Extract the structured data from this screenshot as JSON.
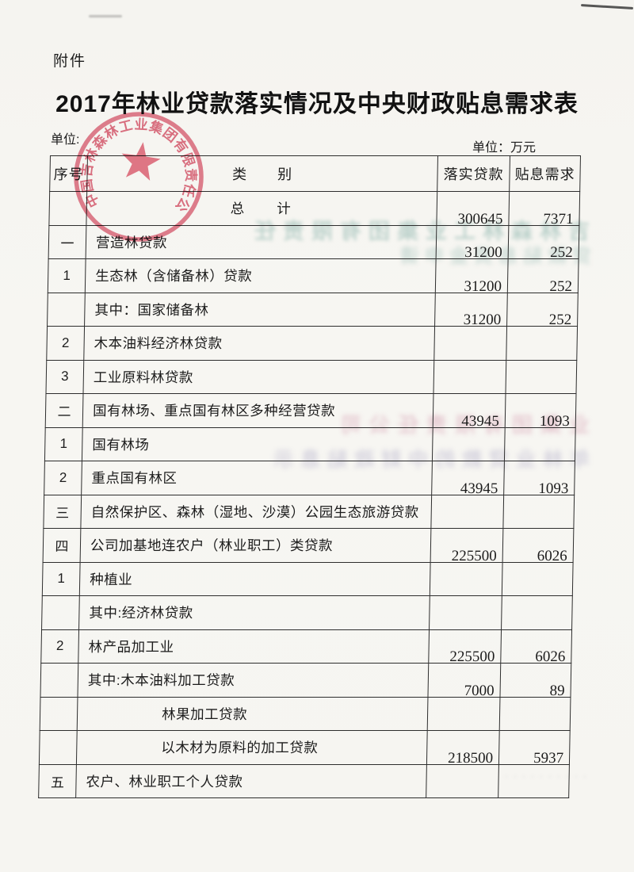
{
  "page": {
    "attachment_label": "附件",
    "title": "2017年林业贷款落实情况及中央财政贴息需求表",
    "unit_label_left": "单位:",
    "unit_label_right": "单位：万元"
  },
  "table": {
    "headers": {
      "no": "序号",
      "category": "类　　别",
      "loan": "落实贷款",
      "subsidy": "贴息需求"
    },
    "rows": [
      {
        "no": "",
        "category": "总　　计",
        "align": "center",
        "loan": "300645",
        "subsidy": "7371"
      },
      {
        "no": "一",
        "category": "营造林贷款",
        "loan": "31200",
        "subsidy": "252"
      },
      {
        "no": "1",
        "category": "生态林（含储备林）贷款",
        "loan": "31200",
        "subsidy": "252"
      },
      {
        "no": "",
        "category": "其中：国家储备林",
        "loan": "31200",
        "subsidy": "252"
      },
      {
        "no": "2",
        "category": "木本油料经济林贷款",
        "loan": "",
        "subsidy": ""
      },
      {
        "no": "3",
        "category": "工业原料林贷款",
        "loan": "",
        "subsidy": ""
      },
      {
        "no": "二",
        "category": "国有林场、重点国有林区多种经营贷款",
        "loan": "43945",
        "subsidy": "1093"
      },
      {
        "no": "1",
        "category": "国有林场",
        "loan": "",
        "subsidy": ""
      },
      {
        "no": "2",
        "category": "重点国有林区",
        "loan": "43945",
        "subsidy": "1093"
      },
      {
        "no": "三",
        "category": "自然保护区、森林（湿地、沙漠）公园生态旅游贷款",
        "loan": "",
        "subsidy": ""
      },
      {
        "no": "四",
        "category": "公司加基地连农户（林业职工）类贷款",
        "loan": "225500",
        "subsidy": "6026"
      },
      {
        "no": "1",
        "category": "种植业",
        "loan": "",
        "subsidy": ""
      },
      {
        "no": "",
        "category": "其中:经济林贷款",
        "loan": "",
        "subsidy": ""
      },
      {
        "no": "2",
        "category": "林产品加工业",
        "loan": "225500",
        "subsidy": "6026"
      },
      {
        "no": "",
        "category": "其中:木本油料加工贷款",
        "loan": "7000",
        "subsidy": "89"
      },
      {
        "no": "",
        "category": "林果加工贷款",
        "indent": 2,
        "loan": "",
        "subsidy": ""
      },
      {
        "no": "",
        "category": "以木材为原料的加工贷款",
        "indent": 2,
        "loan": "218500",
        "subsidy": "5937"
      },
      {
        "no": "五",
        "category": "农户、林业职工个人贷款",
        "loan": "",
        "subsidy": ""
      }
    ]
  },
  "seal": {
    "company_text": "中国吉林森林工业集团有限责任公司",
    "color": "#d9536a"
  },
  "artifacts": {
    "ghost1": {
      "text": "吉林森林工业集团有限责任"
    },
    "ghost2": {
      "text": "贷款贴息资金申请"
    },
    "ghost3": {
      "text": "业集团有限责任公司"
    },
    "ghost4": {
      "text": "年林业贷款的中财政贴息示"
    },
    "ghost5": {
      "text": "··········"
    }
  }
}
